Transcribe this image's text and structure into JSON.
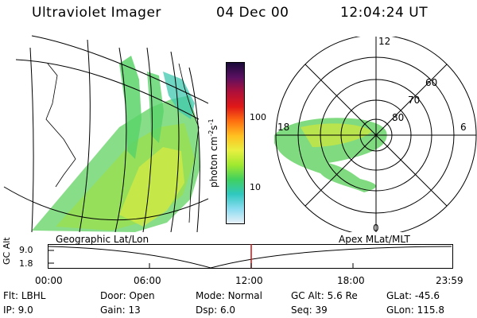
{
  "header": {
    "title": "Ultraviolet Imager",
    "date": "04 Dec 00",
    "time": "12:04:24 UT"
  },
  "colorbar": {
    "label": "photon cm",
    "label_sup1": "-2",
    "label_mid": "s",
    "label_sup2": "-1",
    "ticks": [
      "100",
      "10"
    ],
    "colors": [
      "#1a0a3a",
      "#5a1060",
      "#b0103a",
      "#e01818",
      "#ff7010",
      "#ffc020",
      "#e8f040",
      "#a0e830",
      "#40d060",
      "#30c8c0",
      "#8adcf0",
      "#e8f0f8"
    ]
  },
  "panels": {
    "left_caption": "Geographic Lat/Lon",
    "right_caption": "Apex MLat/MLT"
  },
  "polar": {
    "mlt_labels": [
      "12",
      "18",
      "6",
      "0"
    ],
    "mlat_labels": [
      "60",
      "70",
      "80"
    ]
  },
  "timeline": {
    "axis_label": "GC Alt",
    "y_ticks": [
      "9.0",
      "1.8"
    ],
    "x_ticks": [
      "00:00",
      "06:00",
      "12:00",
      "18:00",
      "23:59"
    ],
    "marker_color": "#d01010"
  },
  "status": {
    "filter_label": "Flt:",
    "filter_value": "LBHL",
    "door_label": "Door:",
    "door_value": "Open",
    "mode_label": "Mode:",
    "mode_value": "Normal",
    "gcalt_label": "GC Alt:",
    "gcalt_value": "5.6 Re",
    "glat_label": "GLat:",
    "glat_value": "-45.6",
    "ip_label": "IP:",
    "ip_value": "9.0",
    "gain_label": "Gain:",
    "gain_value": "13",
    "dsp_label": "Dsp:",
    "dsp_value": "6.0",
    "seq_label": "Seq:",
    "seq_value": "39",
    "glon_label": "GLon:",
    "glon_value": "115.8"
  }
}
